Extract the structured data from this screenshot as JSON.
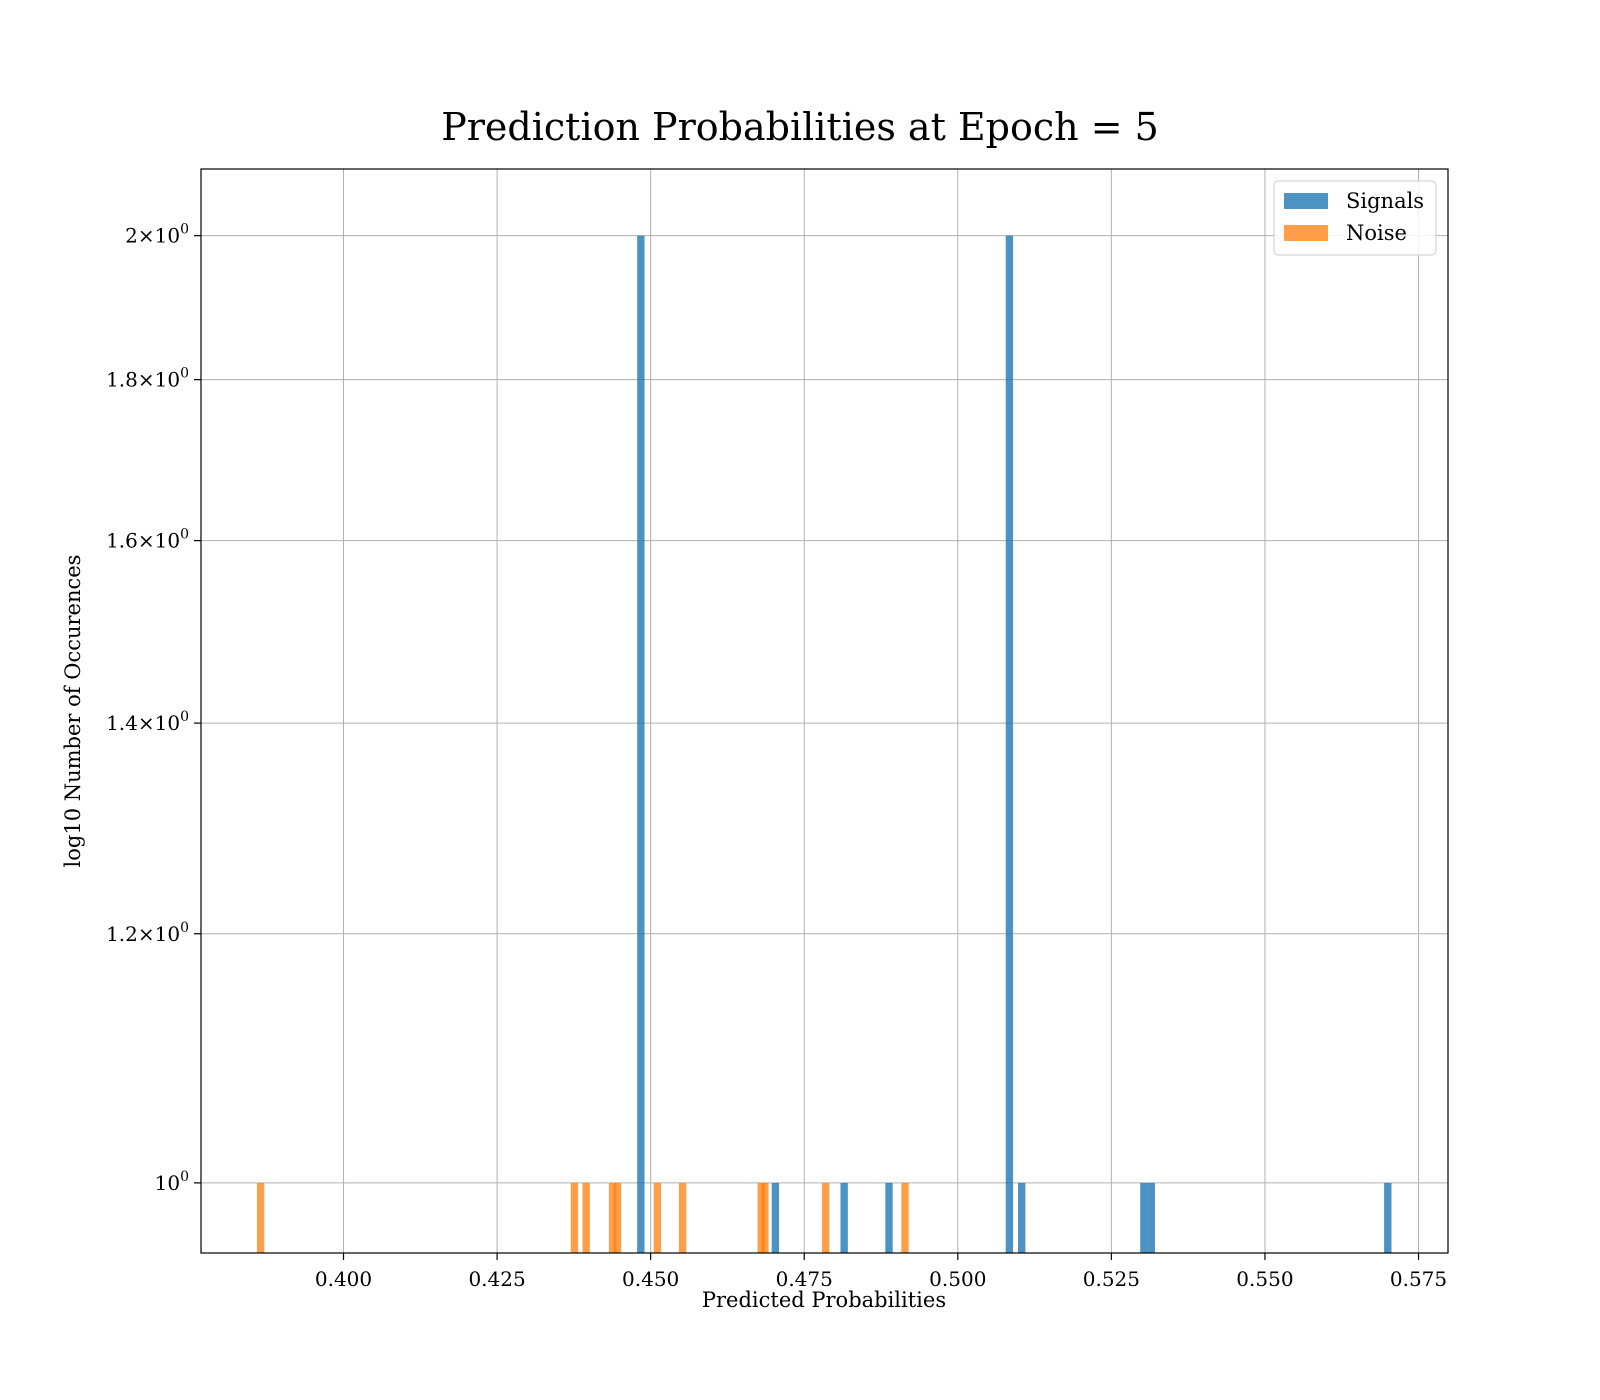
{
  "chart_data": {
    "type": "bar",
    "title": "Prediction Probabilities at Epoch = 5",
    "xlabel": "Predicted Probabilities",
    "ylabel": "log10 Number of Occurences",
    "yscale": "log",
    "xlim": [
      0.3768,
      0.5798
    ],
    "ylim": [
      0.95,
      2.1
    ],
    "grid": true,
    "legend_position": "top-right",
    "bin_width": 0.0012,
    "x_ticks": [
      0.4,
      0.425,
      0.45,
      0.475,
      0.5,
      0.525,
      0.55,
      0.575
    ],
    "x_tick_labels": [
      "0.400",
      "0.425",
      "0.450",
      "0.475",
      "0.500",
      "0.525",
      "0.550",
      "0.575"
    ],
    "y_ticks": [
      {
        "value": 2.0,
        "mantissa": "2",
        "base": "10",
        "exp": "0"
      },
      {
        "value": 1.8,
        "mantissa": "1.8",
        "base": "10",
        "exp": "0"
      },
      {
        "value": 1.6,
        "mantissa": "1.6",
        "base": "10",
        "exp": "0"
      },
      {
        "value": 1.4,
        "mantissa": "1.4",
        "base": "10",
        "exp": "0"
      },
      {
        "value": 1.2,
        "mantissa": "1.2",
        "base": "10",
        "exp": "0"
      },
      {
        "value": 1.0,
        "mantissa": "",
        "base": "10",
        "exp": "0"
      }
    ],
    "series": [
      {
        "name": "Signals",
        "color": "#1f77b4",
        "opacity": 0.8,
        "bins": [
          {
            "x": 0.4484,
            "count": 2
          },
          {
            "x": 0.4703,
            "count": 1
          },
          {
            "x": 0.4815,
            "count": 1
          },
          {
            "x": 0.4888,
            "count": 1
          },
          {
            "x": 0.5084,
            "count": 2
          },
          {
            "x": 0.5104,
            "count": 1
          },
          {
            "x": 0.5303,
            "count": 1
          },
          {
            "x": 0.5315,
            "count": 1
          },
          {
            "x": 0.57,
            "count": 1
          }
        ]
      },
      {
        "name": "Noise",
        "color": "#ff7f0e",
        "opacity": 0.75,
        "bins": [
          {
            "x": 0.3865,
            "count": 1
          },
          {
            "x": 0.4376,
            "count": 1
          },
          {
            "x": 0.4395,
            "count": 1
          },
          {
            "x": 0.4438,
            "count": 1
          },
          {
            "x": 0.4446,
            "count": 1
          },
          {
            "x": 0.4511,
            "count": 1
          },
          {
            "x": 0.4552,
            "count": 1
          },
          {
            "x": 0.468,
            "count": 1
          },
          {
            "x": 0.4686,
            "count": 1
          },
          {
            "x": 0.4785,
            "count": 1
          },
          {
            "x": 0.4914,
            "count": 1
          }
        ]
      }
    ]
  }
}
